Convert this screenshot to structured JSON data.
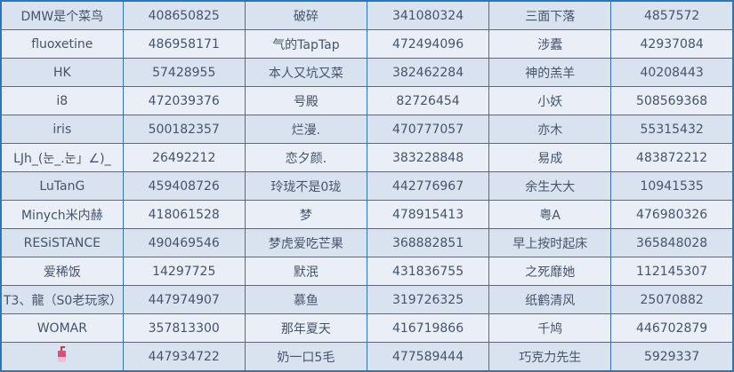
{
  "colors": {
    "grid_border": "#2f76b5",
    "row_odd_bg": "#d9e3f0",
    "row_even_bg": "#e9eef7",
    "text": "#44546a",
    "drink_icon_top": "#e8487c",
    "drink_icon_bottom": "#f3bed0"
  },
  "table": {
    "column_kinds": [
      "player-name",
      "player-id",
      "player-name",
      "player-id",
      "player-name",
      "player-id"
    ],
    "rows": [
      [
        "DMW是个菜鸟",
        "408650825",
        "破碎",
        "341080324",
        "三面下落",
        "4857572"
      ],
      [
        "fluoxetine",
        "486958171",
        "气的TapTap",
        "472494096",
        "涉蠹",
        "42937084"
      ],
      [
        "HK",
        "57428955",
        "本人又坑又菜",
        "382462284",
        "神的羔羊",
        "40208443"
      ],
      [
        "i8",
        "472039376",
        "号殿",
        "82726454",
        "小妖",
        "508569368"
      ],
      [
        "iris",
        "500182357",
        "烂漫.",
        "470777057",
        "亦木",
        "55315432"
      ],
      [
        "LJh_(눈_.눈」∠)_",
        "26492212",
        "恋夕颜.",
        "383228848",
        "易成",
        "483872212"
      ],
      [
        "LuTanG",
        "459408726",
        "玲珑不是0珑",
        "442776967",
        "余生大大",
        "10941535"
      ],
      [
        "Minych米内赫",
        "418061528",
        "梦",
        "478915413",
        "粤A",
        "476980326"
      ],
      [
        "RESiSTANCE",
        "490469546",
        "梦虎爱吃芒果",
        "368882851",
        "早上按时起床",
        "365848028"
      ],
      [
        "爱稀饭",
        "14297725",
        "默泯",
        "431836755",
        "之死靡她",
        "112145307"
      ],
      [
        "T3、龍（S0老玩家）",
        "447974907",
        "慕鱼",
        "319726325",
        "纸鹤清风",
        "25070882"
      ],
      [
        "WOMAR",
        "357813300",
        "那年夏天",
        "416719866",
        "千鸠",
        "446702879"
      ],
      [
        {
          "icon": "bubble-tea-drink"
        },
        "447934722",
        "奶一口5毛",
        "477589444",
        "巧克力先生",
        "5929337"
      ]
    ]
  }
}
